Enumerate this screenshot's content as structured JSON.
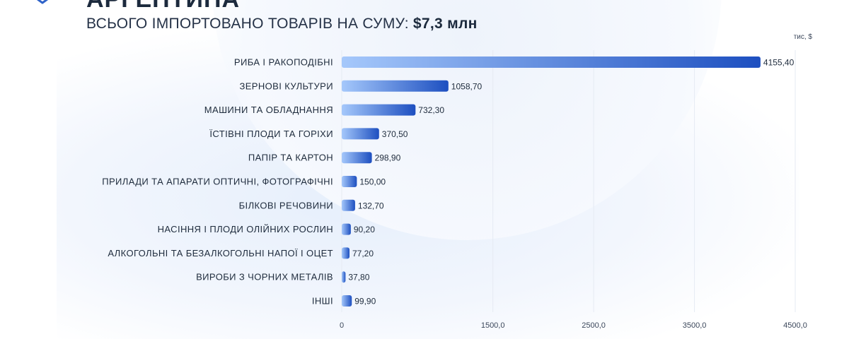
{
  "header": {
    "country": "АРГЕНТИНА",
    "subtitle": "ВСЬОГО ІМПОРТОВАНО ТОВАРІВ НА СУМУ:",
    "total": "$7,3 млн"
  },
  "colors": {
    "bar_start": "#a5c8fb",
    "bar_end": "#1d4fc0",
    "grid": "#e6ebf3",
    "text": "#1e2b3c"
  },
  "chart_data": {
    "type": "bar",
    "orientation": "horizontal",
    "unit_label": "тис, $",
    "categories": [
      "РИБА І РАКОПОДІБНІ",
      "ЗЕРНОВІ КУЛЬТУРИ",
      "МАШИНИ ТА ОБЛАДНАННЯ",
      "ЇСТІВНІ ПЛОДИ ТА ГОРІХИ",
      "ПАПІР ТА КАРТОН",
      "ПРИЛАДИ ТА АПАРАТИ ОПТИЧНІ, ФОТОГРАФІЧНІ",
      "БІЛКОВІ РЕЧОВИНИ",
      "НАСІННЯ І ПЛОДИ ОЛІЙНИХ РОСЛИН",
      "АЛКОГОЛЬНІ ТА БЕЗАЛКОГОЛЬНІ НАПОЇ І ОЦЕТ",
      "ВИРОБИ З ЧОРНИХ МЕТАЛІВ",
      "ІНШІ"
    ],
    "values": [
      4155.4,
      1058.7,
      732.3,
      370.5,
      298.9,
      150.0,
      132.7,
      90.2,
      77.2,
      37.8,
      99.9
    ],
    "value_labels": [
      "4155,40",
      "1058,70",
      "732,30",
      "370,50",
      "298,90",
      "150,00",
      "132,70",
      "90,20",
      "77,20",
      "37,80",
      "99,90"
    ],
    "xlim": [
      0,
      4500
    ],
    "xticks": [
      0,
      1500,
      2500,
      3500,
      4500
    ],
    "xtick_labels": [
      "0",
      "1500,0",
      "2500,0",
      "3500,0",
      "4500,0"
    ],
    "grid": true
  }
}
